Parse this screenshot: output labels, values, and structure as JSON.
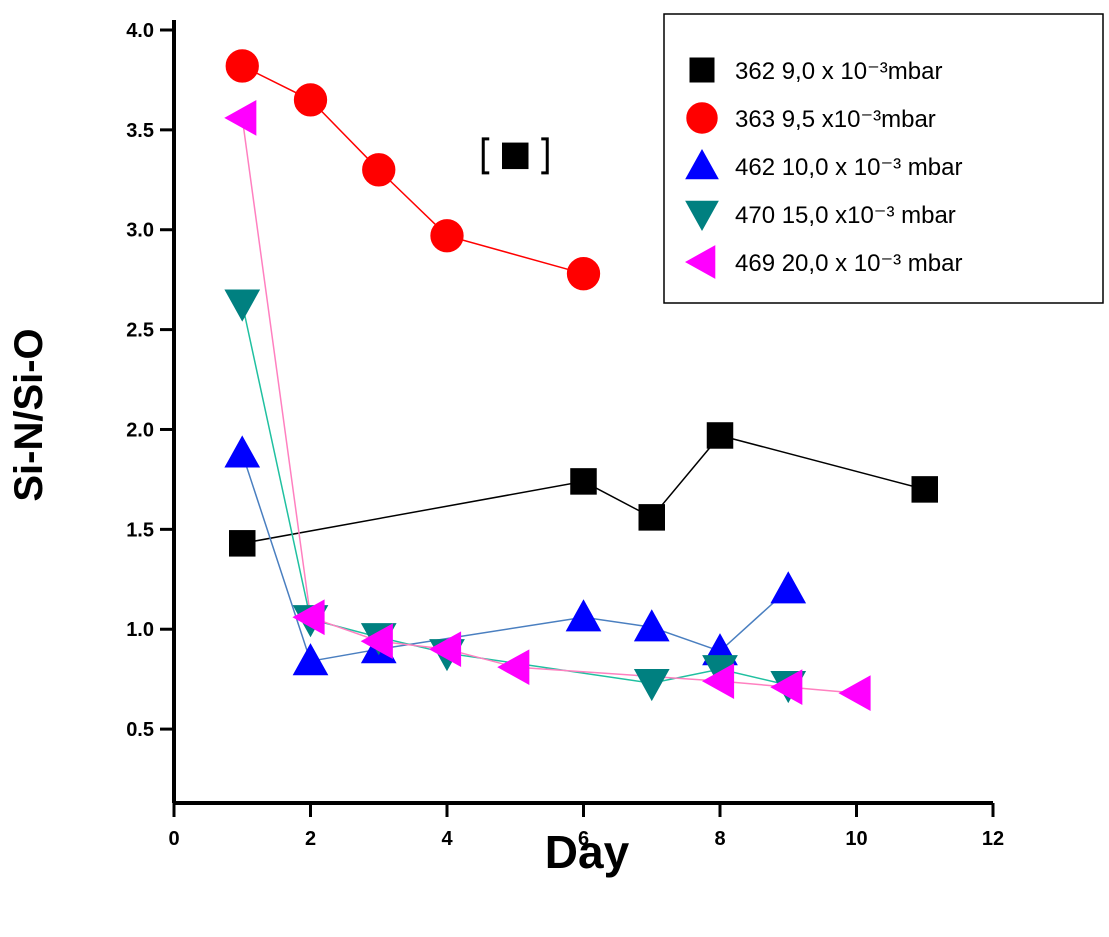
{
  "chart_data": {
    "type": "line",
    "xlabel": "Day",
    "ylabel": "Si-N/Si-O",
    "xlim": [
      0,
      12
    ],
    "ylim": [
      0.13,
      4.05
    ],
    "xticks": [
      0,
      2,
      4,
      6,
      8,
      10,
      12
    ],
    "yticks": [
      0.5,
      {
        "value": 1,
        "label": "1.0"
      },
      1.5,
      {
        "value": 2,
        "label": "2.0"
      },
      2.5,
      {
        "value": 3,
        "label": "3.0"
      },
      3.5,
      {
        "value": 4,
        "label": "4.0"
      }
    ],
    "legend": "upper right",
    "series": [
      {
        "name": "362 9,0 x 10⁻³mbar",
        "color": "#000000",
        "marker": "square",
        "line_color": "#000000",
        "x": [
          1,
          6,
          7,
          8,
          11
        ],
        "values": [
          1.43,
          1.74,
          1.56,
          1.97,
          1.7
        ]
      },
      {
        "name": "363 9,5 x10⁻³mbar",
        "color": "#ff0000",
        "marker": "circle",
        "line_color": "#ff0000",
        "x": [
          1,
          2,
          3,
          4,
          6
        ],
        "values": [
          3.82,
          3.65,
          3.3,
          2.97,
          2.78
        ]
      },
      {
        "name": "462 10,0 x 10⁻³ mbar",
        "color": "#0000ff",
        "marker": "triangle-up",
        "line_color": "#4a7fc0",
        "x": [
          1,
          2,
          3,
          6,
          7,
          8,
          9
        ],
        "values": [
          1.88,
          0.84,
          0.9,
          1.06,
          1.01,
          0.89,
          1.2
        ]
      },
      {
        "name": "470 15,0 x10⁻³ mbar",
        "color": "#008080",
        "marker": "triangle-down",
        "line_color": "#20c0a0",
        "x": [
          1,
          2,
          3,
          4,
          7,
          8,
          9
        ],
        "values": [
          2.63,
          1.05,
          0.96,
          0.88,
          0.73,
          0.8,
          0.72
        ]
      },
      {
        "name": "469 20,0 x 10⁻³ mbar",
        "color": "#ff00ff",
        "marker": "triangle-left",
        "line_color": "#ff80c0",
        "x": [
          1,
          2,
          3,
          4,
          5,
          8,
          9,
          10
        ],
        "values": [
          3.56,
          1.06,
          0.94,
          0.9,
          0.81,
          0.74,
          0.71,
          0.68
        ]
      }
    ],
    "excluded_point": {
      "series": 0,
      "x": 5,
      "y": 3.37
    }
  }
}
